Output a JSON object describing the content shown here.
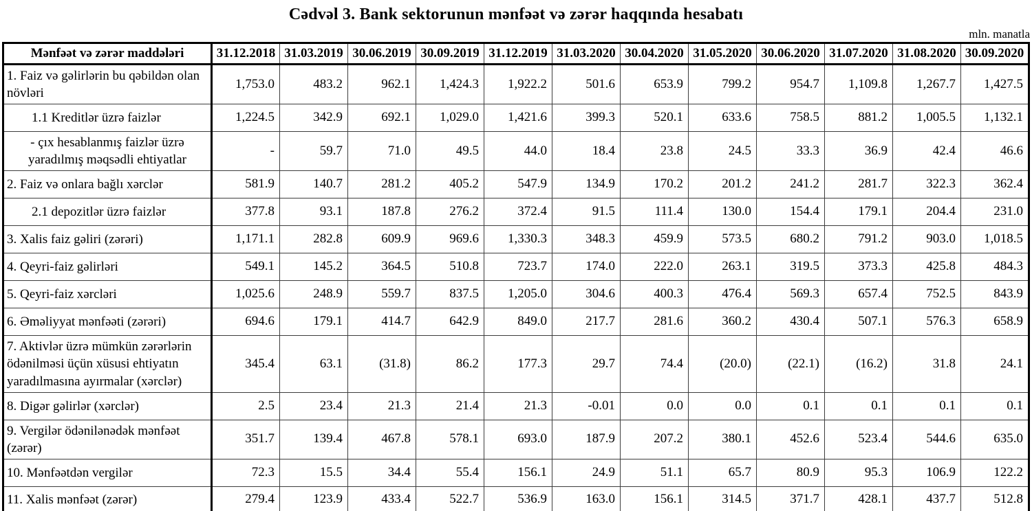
{
  "title": "Cədvəl 3. Bank sektorunun mənfəət və zərər haqqında hesabatı",
  "unit_note": "mln. manatla",
  "table": {
    "header_label": "Mənfəət və zərər maddələri",
    "columns": [
      "31.12.2018",
      "31.03.2019",
      "30.06.2019",
      "30.09.2019",
      "31.12.2019",
      "31.03.2020",
      "30.04.2020",
      "31.05.2020",
      "30.06.2020",
      "31.07.2020",
      "31.08.2020",
      "30.09.2020"
    ],
    "rows": [
      {
        "label": "1. Faiz və gəlirlərin bu qəbildən olan növləri",
        "indent": "none",
        "values": [
          "1,753.0",
          "483.2",
          "962.1",
          "1,424.3",
          "1,922.2",
          "501.6",
          "653.9",
          "799.2",
          "954.7",
          "1,109.8",
          "1,267.7",
          "1,427.5"
        ]
      },
      {
        "label": "1.1 Kreditlər üzrə faizlər",
        "indent": "sub",
        "values": [
          "1,224.5",
          "342.9",
          "692.1",
          "1,029.0",
          "1,421.6",
          "399.3",
          "520.1",
          "633.6",
          "758.5",
          "881.2",
          "1,005.5",
          "1,132.1"
        ]
      },
      {
        "label": "-  çıx hesablanmış faizlər üzrə yaradılmış məqsədli ehtiyatlar",
        "indent": "center",
        "values": [
          "-",
          "59.7",
          "71.0",
          "49.5",
          "44.0",
          "18.4",
          "23.8",
          "24.5",
          "33.3",
          "36.9",
          "42.4",
          "46.6"
        ]
      },
      {
        "label": "2. Faiz və onlara bağlı xərclər",
        "indent": "none",
        "values": [
          "581.9",
          "140.7",
          "281.2",
          "405.2",
          "547.9",
          "134.9",
          "170.2",
          "201.2",
          "241.2",
          "281.7",
          "322.3",
          "362.4"
        ]
      },
      {
        "label": "2.1 depozitlər üzrə faizlər",
        "indent": "sub",
        "values": [
          "377.8",
          "93.1",
          "187.8",
          "276.2",
          "372.4",
          "91.5",
          "111.4",
          "130.0",
          "154.4",
          "179.1",
          "204.4",
          "231.0"
        ]
      },
      {
        "label": "3. Xalis faiz gəliri (zərəri)",
        "indent": "none",
        "values": [
          "1,171.1",
          "282.8",
          "609.9",
          "969.6",
          "1,330.3",
          "348.3",
          "459.9",
          "573.5",
          "680.2",
          "791.2",
          "903.0",
          "1,018.5"
        ]
      },
      {
        "label": "4. Qeyri-faiz gəlirləri",
        "indent": "none",
        "values": [
          "549.1",
          "145.2",
          "364.5",
          "510.8",
          "723.7",
          "174.0",
          "222.0",
          "263.1",
          "319.5",
          "373.3",
          "425.8",
          "484.3"
        ]
      },
      {
        "label": "5. Qeyri-faiz xərcləri",
        "indent": "none",
        "values": [
          "1,025.6",
          "248.9",
          "559.7",
          "837.5",
          "1,205.0",
          "304.6",
          "400.3",
          "476.4",
          "569.3",
          "657.4",
          "752.5",
          "843.9"
        ]
      },
      {
        "label": "6. Əməliyyat mənfəəti (zərəri)",
        "indent": "none",
        "values": [
          "694.6",
          "179.1",
          "414.7",
          "642.9",
          "849.0",
          "217.7",
          "281.6",
          "360.2",
          "430.4",
          "507.1",
          "576.3",
          "658.9"
        ]
      },
      {
        "label": "7. Aktivlər üzrə mümkün zərərlərin ödənilməsi üçün xüsusi ehtiyatın yaradılmasına ayırmalar (xərclər)",
        "indent": "none",
        "values": [
          "345.4",
          "63.1",
          "(31.8)",
          "86.2",
          "177.3",
          "29.7",
          "74.4",
          "(20.0)",
          "(22.1)",
          "(16.2)",
          "31.8",
          "24.1"
        ]
      },
      {
        "label": "8. Digər gəlirlər (xərclər)",
        "indent": "none",
        "values": [
          "2.5",
          "23.4",
          "21.3",
          "21.4",
          "21.3",
          "-0.01",
          "0.0",
          "0.0",
          "0.1",
          "0.1",
          "0.1",
          "0.1"
        ]
      },
      {
        "label": "9. Vergilər ödənilənədək mənfəət (zərər)",
        "indent": "none",
        "values": [
          "351.7",
          "139.4",
          "467.8",
          "578.1",
          "693.0",
          "187.9",
          "207.2",
          "380.1",
          "452.6",
          "523.4",
          "544.6",
          "635.0"
        ]
      },
      {
        "label": "10. Mənfəətdən vergilər",
        "indent": "none",
        "values": [
          "72.3",
          "15.5",
          "34.4",
          "55.4",
          "156.1",
          "24.9",
          "51.1",
          "65.7",
          "80.9",
          "95.3",
          "106.9",
          "122.2"
        ]
      },
      {
        "label": "11. Xalis mənfəət (zərər)",
        "indent": "none",
        "values": [
          "279.4",
          "123.9",
          "433.4",
          "522.7",
          "536.9",
          "163.0",
          "156.1",
          "314.5",
          "371.7",
          "428.1",
          "437.7",
          "512.8"
        ]
      }
    ]
  }
}
